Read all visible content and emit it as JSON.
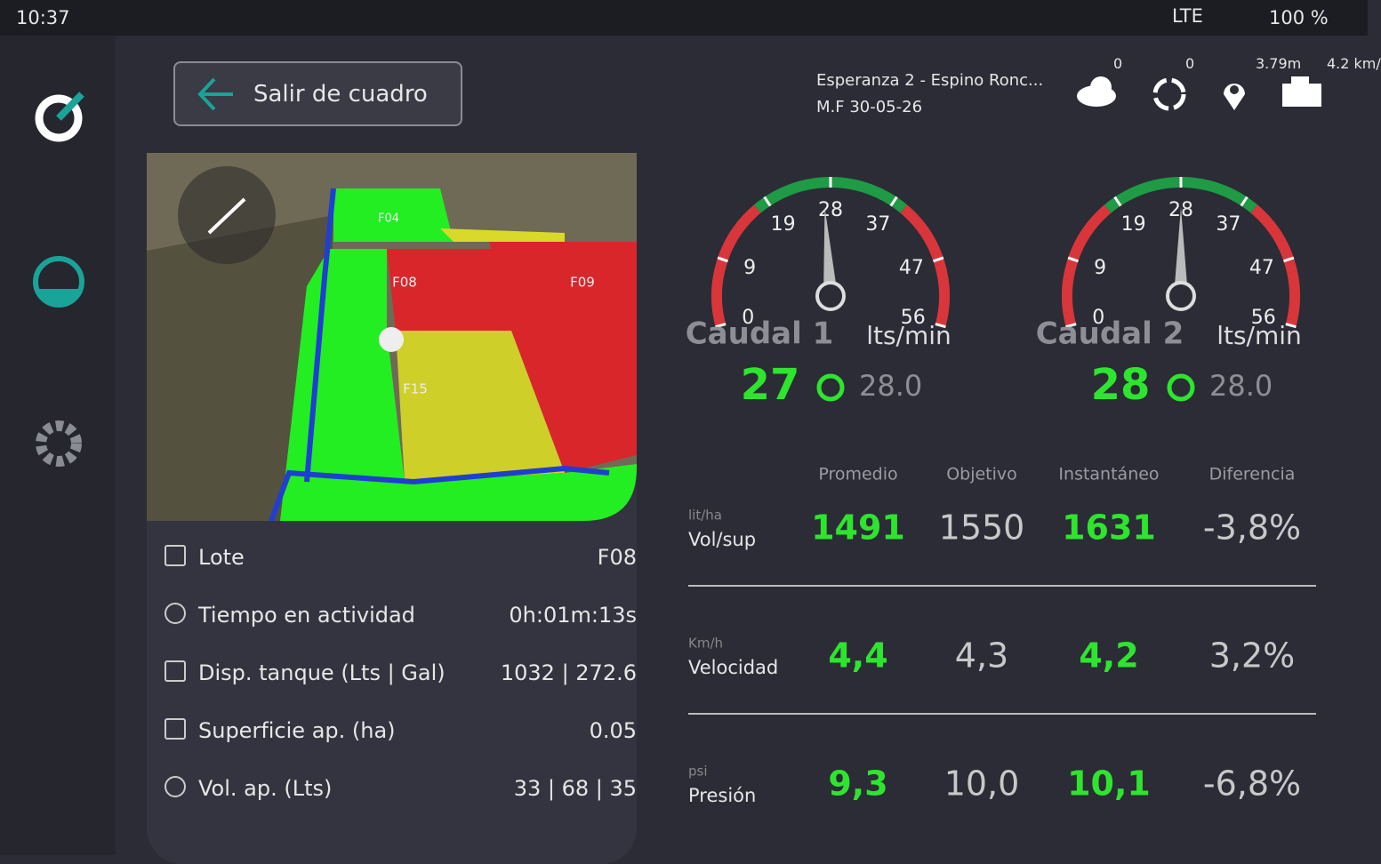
{
  "status": {
    "time": "10:37",
    "network": "LTE",
    "battery": "100 %"
  },
  "header": {
    "back_button": "Salir de cuadro",
    "job": "Esperanza 2 - Espino Ronc...",
    "date": "M.F 30-05-26",
    "indicators": [
      "0",
      "0",
      "3.79m",
      "4.2 km/"
    ]
  },
  "map": {
    "labels": [
      "F04",
      "F08",
      "F09",
      "F15"
    ]
  },
  "gauges": [
    {
      "name": "Caudal 1",
      "unit": "lts/min",
      "ticks": [
        0,
        9,
        19,
        28,
        37,
        47,
        56
      ],
      "value": 27,
      "target": "28.0"
    },
    {
      "name": "Caudal 2",
      "unit": "lts/min",
      "ticks": [
        0,
        9,
        19,
        28,
        37,
        47,
        56
      ],
      "value": 28,
      "target": "28.0"
    }
  ],
  "table": {
    "columns": [
      "Promedio",
      "Objetivo",
      "Instantáneo",
      "Diferencia"
    ],
    "rows": [
      {
        "unit": "lit/ha",
        "label": "Vol/sup",
        "cells": [
          "1491",
          "1550",
          "1631",
          "-3,8%"
        ]
      },
      {
        "unit": "Km/h",
        "label": "Velocidad",
        "cells": [
          "4,4",
          "4,3",
          "4,2",
          "3,2%"
        ]
      },
      {
        "unit": "psi",
        "label": "Presión",
        "cells": [
          "9,3",
          "10,0",
          "10,1",
          "-6,8%"
        ]
      }
    ]
  },
  "info": [
    {
      "label": "Lote",
      "value": "F08"
    },
    {
      "label": "Tiempo en actividad",
      "value": "0h:01m:13s"
    },
    {
      "label": "Disp. tanque (Lts | Gal)",
      "value": "1032 | 272.6"
    },
    {
      "label": "Superficie ap. (ha)",
      "value": "0.05"
    },
    {
      "label": "Vol. ap. (Lts)",
      "value": "33 | 68 | 35"
    }
  ]
}
